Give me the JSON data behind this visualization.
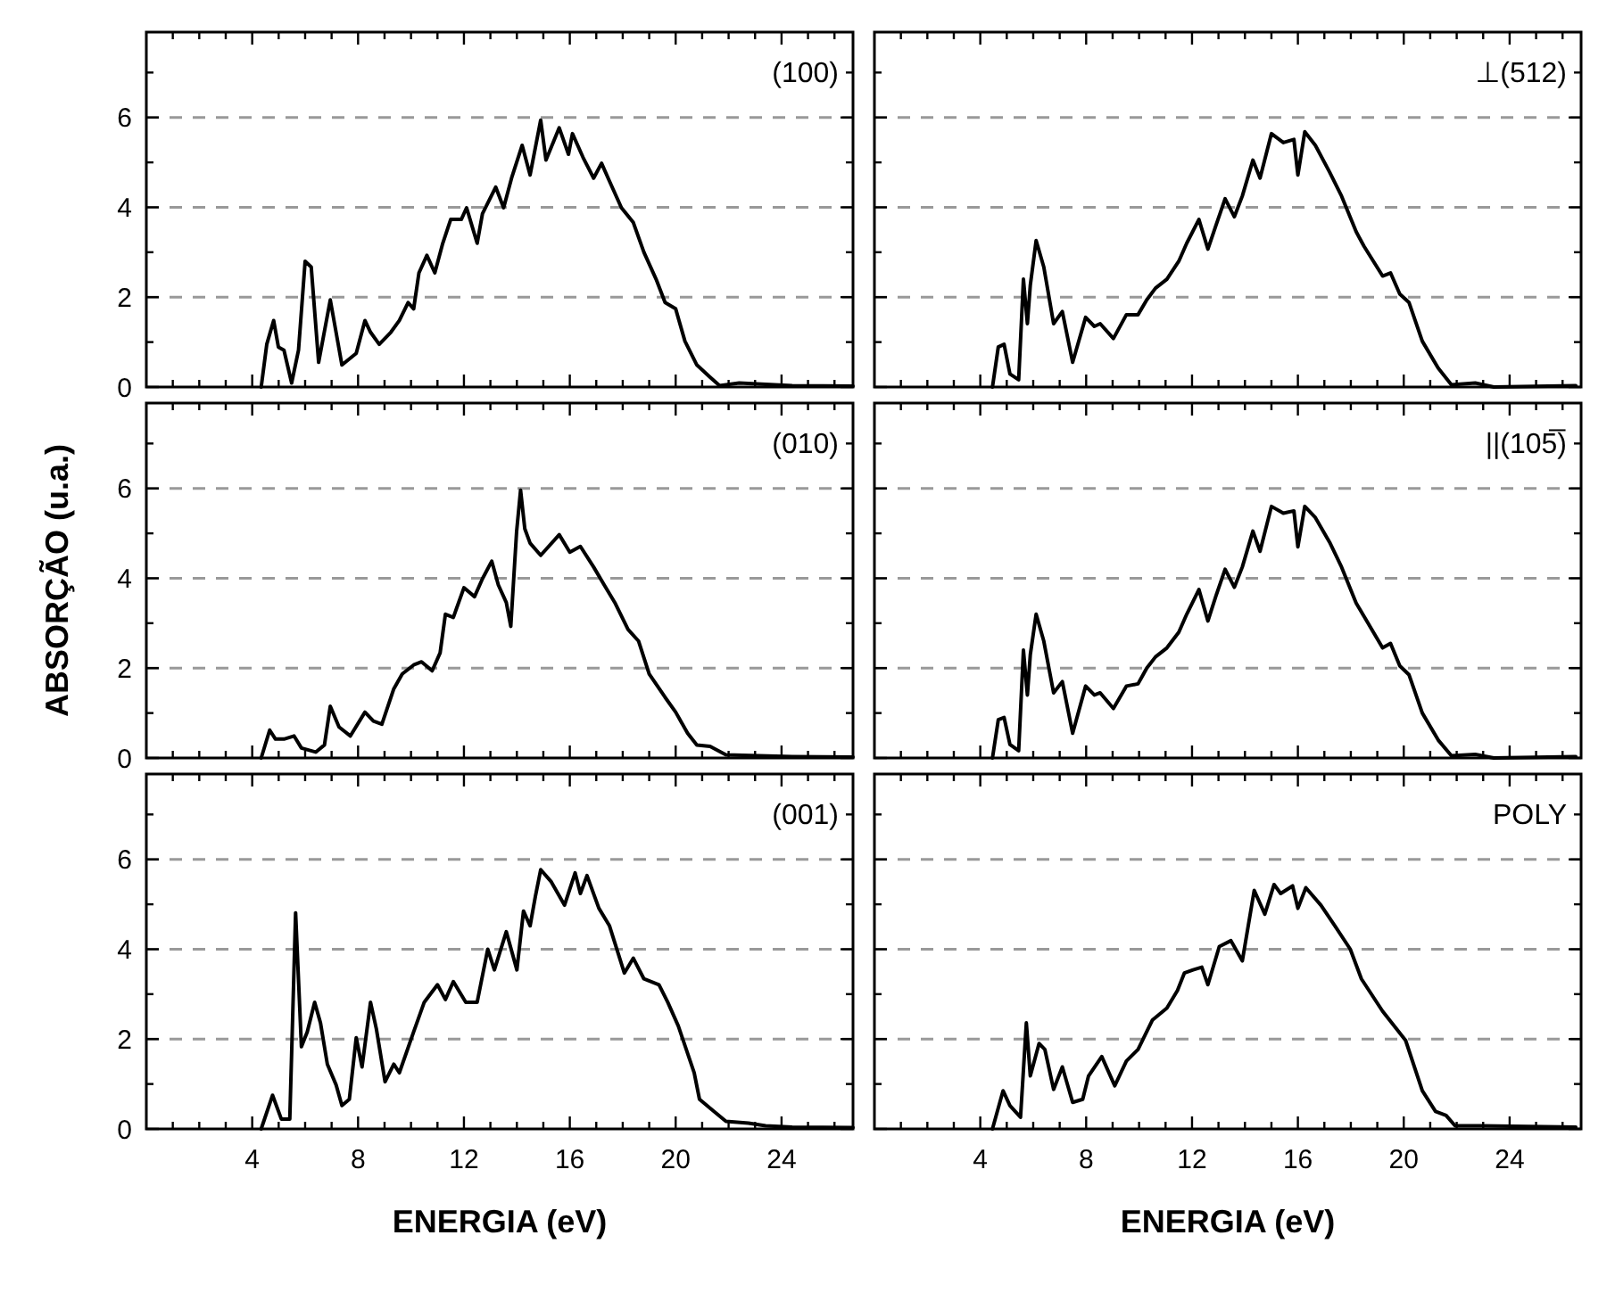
{
  "chart_data": [
    {
      "type": "line",
      "annotations": [
        "(100)"
      ],
      "xlim": [
        0,
        26.7
      ],
      "ylim": [
        0,
        7.9
      ],
      "grid": "y",
      "tick_labels": "y",
      "line_style": "solid",
      "marker": "none",
      "xticks": [
        {
          "value": 1,
          "label": null
        },
        {
          "value": 2,
          "label": null
        },
        {
          "value": 3,
          "label": null
        },
        4,
        {
          "value": 5,
          "label": null
        },
        {
          "value": 6,
          "label": null
        },
        {
          "value": 7,
          "label": null
        },
        8,
        {
          "value": 9,
          "label": null
        },
        {
          "value": 10,
          "label": null
        },
        {
          "value": 11,
          "label": null
        },
        12,
        {
          "value": 13,
          "label": null
        },
        {
          "value": 14,
          "label": null
        },
        {
          "value": 15,
          "label": null
        },
        16,
        {
          "value": 17,
          "label": null
        },
        {
          "value": 18,
          "label": null
        },
        {
          "value": 19,
          "label": null
        },
        20,
        {
          "value": 21,
          "label": null
        },
        {
          "value": 22,
          "label": null
        },
        {
          "value": 23,
          "label": null
        },
        24,
        {
          "value": 25,
          "label": null
        },
        {
          "value": 26,
          "label": null
        }
      ],
      "yticks": [
        0,
        {
          "value": 1,
          "label": null
        },
        2,
        {
          "value": 3,
          "label": null
        },
        4,
        {
          "value": 5,
          "label": null
        },
        6,
        {
          "value": 7,
          "label": null
        }
      ],
      "series": [
        {
          "color": "#000000",
          "x": [
            4.34,
            4.55,
            4.81,
            4.99,
            5.2,
            5.49,
            5.75,
            6.0,
            6.23,
            6.51,
            6.95,
            7.39,
            7.93,
            8.26,
            8.47,
            8.8,
            9.24,
            9.56,
            9.89,
            10.1,
            10.3,
            10.6,
            10.9,
            11.2,
            11.5,
            11.9,
            12.1,
            12.5,
            12.7,
            13.2,
            13.5,
            13.8,
            14.2,
            14.5,
            14.9,
            15.1,
            15.6,
            15.95,
            16.1,
            16.5,
            16.9,
            17.2,
            17.5,
            17.95,
            18.4,
            18.8,
            19.26,
            19.6,
            20.0,
            20.35,
            20.8,
            21.3,
            21.66,
            22.4,
            24.4,
            26.7
          ],
          "values": [
            0,
            0.95,
            1.48,
            0.89,
            0.82,
            0.09,
            0.82,
            2.8,
            2.67,
            0.55,
            1.94,
            0.49,
            0.75,
            1.48,
            1.22,
            0.95,
            1.22,
            1.48,
            1.88,
            1.74,
            2.54,
            2.93,
            2.54,
            3.2,
            3.73,
            3.73,
            3.99,
            3.2,
            3.86,
            4.45,
            3.99,
            4.65,
            5.38,
            4.72,
            5.94,
            5.05,
            5.77,
            5.18,
            5.64,
            5.11,
            4.65,
            4.98,
            4.58,
            3.99,
            3.66,
            3.0,
            2.4,
            1.88,
            1.74,
            1.02,
            0.49,
            0.22,
            0.03,
            0.09,
            0.03,
            0.02
          ]
        }
      ]
    },
    {
      "type": "line",
      "annotations": [
        "⊥(512)"
      ],
      "xlim": [
        0,
        26.7
      ],
      "ylim": [
        0,
        7.9
      ],
      "grid": "y",
      "tick_labels": false,
      "line_style": "solid",
      "marker": "none",
      "xticks": [
        {
          "value": 1,
          "label": null
        },
        {
          "value": 2,
          "label": null
        },
        {
          "value": 3,
          "label": null
        },
        4,
        {
          "value": 5,
          "label": null
        },
        {
          "value": 6,
          "label": null
        },
        {
          "value": 7,
          "label": null
        },
        8,
        {
          "value": 9,
          "label": null
        },
        {
          "value": 10,
          "label": null
        },
        {
          "value": 11,
          "label": null
        },
        12,
        {
          "value": 13,
          "label": null
        },
        {
          "value": 14,
          "label": null
        },
        {
          "value": 15,
          "label": null
        },
        16,
        {
          "value": 17,
          "label": null
        },
        {
          "value": 18,
          "label": null
        },
        {
          "value": 19,
          "label": null
        },
        20,
        {
          "value": 21,
          "label": null
        },
        {
          "value": 22,
          "label": null
        },
        {
          "value": 23,
          "label": null
        },
        24,
        {
          "value": 25,
          "label": null
        },
        {
          "value": 26,
          "label": null
        }
      ],
      "yticks": [
        0,
        {
          "value": 1,
          "label": null
        },
        2,
        {
          "value": 3,
          "label": null
        },
        4,
        {
          "value": 5,
          "label": null
        },
        6,
        {
          "value": 7,
          "label": null
        }
      ],
      "series": [
        {
          "color": "#000000",
          "x": [
            4.46,
            4.68,
            4.9,
            5.12,
            5.45,
            5.63,
            5.78,
            5.89,
            6.11,
            6.4,
            6.77,
            7.1,
            7.49,
            7.98,
            8.31,
            8.53,
            9.03,
            9.52,
            9.96,
            10.29,
            10.62,
            11.05,
            11.5,
            11.8,
            12.26,
            12.6,
            12.9,
            13.25,
            13.6,
            13.9,
            14.3,
            14.57,
            15.0,
            15.45,
            15.85,
            16.0,
            16.26,
            16.66,
            17.2,
            17.65,
            18.2,
            18.5,
            19.2,
            19.5,
            19.85,
            20.2,
            20.7,
            21.3,
            21.8,
            22.7,
            23.4,
            26.5
          ],
          "values": [
            0,
            0.89,
            0.95,
            0.29,
            0.16,
            2.4,
            1.41,
            2.27,
            3.26,
            2.67,
            1.41,
            1.68,
            0.55,
            1.55,
            1.35,
            1.41,
            1.08,
            1.61,
            1.61,
            1.94,
            2.2,
            2.4,
            2.8,
            3.2,
            3.73,
            3.07,
            3.59,
            4.19,
            3.79,
            4.25,
            5.05,
            4.65,
            5.64,
            5.44,
            5.51,
            4.72,
            5.68,
            5.38,
            4.78,
            4.25,
            3.46,
            3.13,
            2.47,
            2.54,
            2.07,
            1.88,
            1.02,
            0.42,
            0.05,
            0.09,
            0,
            0.03
          ]
        }
      ]
    },
    {
      "type": "line",
      "annotations": [
        "(010)"
      ],
      "ylabel": "ABSORÇÃO (u.a.)",
      "xlim": [
        0,
        26.7
      ],
      "ylim": [
        0,
        7.9
      ],
      "grid": "y",
      "tick_labels": "y",
      "line_style": "solid",
      "marker": "none",
      "xticks": [
        {
          "value": 1,
          "label": null
        },
        {
          "value": 2,
          "label": null
        },
        {
          "value": 3,
          "label": null
        },
        4,
        {
          "value": 5,
          "label": null
        },
        {
          "value": 6,
          "label": null
        },
        {
          "value": 7,
          "label": null
        },
        8,
        {
          "value": 9,
          "label": null
        },
        {
          "value": 10,
          "label": null
        },
        {
          "value": 11,
          "label": null
        },
        12,
        {
          "value": 13,
          "label": null
        },
        {
          "value": 14,
          "label": null
        },
        {
          "value": 15,
          "label": null
        },
        16,
        {
          "value": 17,
          "label": null
        },
        {
          "value": 18,
          "label": null
        },
        {
          "value": 19,
          "label": null
        },
        20,
        {
          "value": 21,
          "label": null
        },
        {
          "value": 22,
          "label": null
        },
        {
          "value": 23,
          "label": null
        },
        24,
        {
          "value": 25,
          "label": null
        },
        {
          "value": 26,
          "label": null
        }
      ],
      "yticks": [
        0,
        {
          "value": 1,
          "label": null
        },
        2,
        {
          "value": 3,
          "label": null
        },
        4,
        {
          "value": 5,
          "label": null
        },
        6,
        {
          "value": 7,
          "label": null
        }
      ],
      "series": [
        {
          "color": "#000000",
          "x": [
            4.34,
            4.66,
            4.88,
            5.2,
            5.58,
            5.86,
            6.4,
            6.73,
            6.95,
            7.28,
            7.71,
            8.26,
            8.58,
            8.9,
            9.35,
            9.67,
            10.1,
            10.4,
            10.8,
            11.1,
            11.3,
            11.6,
            12.0,
            12.4,
            12.7,
            13.05,
            13.3,
            13.6,
            13.77,
            13.99,
            14.14,
            14.3,
            14.5,
            14.9,
            15.6,
            16.0,
            16.4,
            16.9,
            17.3,
            17.7,
            18.2,
            18.6,
            19.0,
            19.6,
            20.0,
            20.45,
            20.8,
            21.3,
            21.9,
            24.4,
            26.7
          ],
          "values": [
            0,
            0.62,
            0.42,
            0.42,
            0.49,
            0.22,
            0.13,
            0.29,
            1.15,
            0.69,
            0.49,
            1.02,
            0.82,
            0.75,
            1.54,
            1.87,
            2.07,
            2.14,
            1.94,
            2.34,
            3.2,
            3.13,
            3.79,
            3.59,
            3.99,
            4.38,
            3.85,
            3.46,
            2.93,
            5.04,
            5.96,
            5.1,
            4.78,
            4.51,
            4.97,
            4.58,
            4.71,
            4.25,
            3.85,
            3.46,
            2.86,
            2.6,
            1.87,
            1.35,
            1.02,
            0.55,
            0.29,
            0.26,
            0.07,
            0.03,
            0.02
          ]
        }
      ]
    },
    {
      "type": "line",
      "annotations": [
        "||(105̅)"
      ],
      "xlim": [
        0,
        26.7
      ],
      "ylim": [
        0,
        7.9
      ],
      "grid": "y",
      "tick_labels": false,
      "line_style": "solid",
      "marker": "none",
      "xticks": [
        {
          "value": 1,
          "label": null
        },
        {
          "value": 2,
          "label": null
        },
        {
          "value": 3,
          "label": null
        },
        4,
        {
          "value": 5,
          "label": null
        },
        {
          "value": 6,
          "label": null
        },
        {
          "value": 7,
          "label": null
        },
        8,
        {
          "value": 9,
          "label": null
        },
        {
          "value": 10,
          "label": null
        },
        {
          "value": 11,
          "label": null
        },
        12,
        {
          "value": 13,
          "label": null
        },
        {
          "value": 14,
          "label": null
        },
        {
          "value": 15,
          "label": null
        },
        16,
        {
          "value": 17,
          "label": null
        },
        {
          "value": 18,
          "label": null
        },
        {
          "value": 19,
          "label": null
        },
        20,
        {
          "value": 21,
          "label": null
        },
        {
          "value": 22,
          "label": null
        },
        {
          "value": 23,
          "label": null
        },
        24,
        {
          "value": 25,
          "label": null
        },
        {
          "value": 26,
          "label": null
        }
      ],
      "yticks": [
        0,
        {
          "value": 1,
          "label": null
        },
        2,
        {
          "value": 3,
          "label": null
        },
        4,
        {
          "value": 5,
          "label": null
        },
        6,
        {
          "value": 7,
          "label": null
        }
      ],
      "series": [
        {
          "color": "#000000",
          "x": [
            4.46,
            4.68,
            4.9,
            5.12,
            5.45,
            5.63,
            5.78,
            5.89,
            6.11,
            6.4,
            6.77,
            7.1,
            7.49,
            7.98,
            8.31,
            8.53,
            9.03,
            9.52,
            9.96,
            10.29,
            10.62,
            11.05,
            11.5,
            11.8,
            12.26,
            12.6,
            12.9,
            13.25,
            13.6,
            13.9,
            14.3,
            14.57,
            15.0,
            15.45,
            15.85,
            16.0,
            16.26,
            16.66,
            17.2,
            17.65,
            18.2,
            18.5,
            19.2,
            19.5,
            19.85,
            20.2,
            20.7,
            21.3,
            21.8,
            22.7,
            23.4,
            26.5
          ],
          "values": [
            0,
            0.85,
            0.9,
            0.3,
            0.16,
            2.4,
            1.4,
            2.3,
            3.2,
            2.6,
            1.45,
            1.7,
            0.55,
            1.6,
            1.4,
            1.45,
            1.1,
            1.6,
            1.65,
            2.0,
            2.25,
            2.45,
            2.8,
            3.2,
            3.75,
            3.05,
            3.6,
            4.2,
            3.8,
            4.25,
            5.05,
            4.6,
            5.6,
            5.45,
            5.5,
            4.7,
            5.6,
            5.35,
            4.8,
            4.25,
            3.45,
            3.15,
            2.45,
            2.55,
            2.05,
            1.85,
            1.0,
            0.4,
            0.05,
            0.08,
            0,
            0.03
          ]
        }
      ]
    },
    {
      "type": "line",
      "annotations": [
        "(001)"
      ],
      "xlabel": "ENERGIA (eV)",
      "xlim": [
        0,
        26.7
      ],
      "ylim": [
        0,
        7.9
      ],
      "grid": "y",
      "line_style": "solid",
      "marker": "none",
      "xticks": [
        {
          "value": 1,
          "label": null
        },
        {
          "value": 2,
          "label": null
        },
        {
          "value": 3,
          "label": null
        },
        4,
        {
          "value": 5,
          "label": null
        },
        {
          "value": 6,
          "label": null
        },
        {
          "value": 7,
          "label": null
        },
        8,
        {
          "value": 9,
          "label": null
        },
        {
          "value": 10,
          "label": null
        },
        {
          "value": 11,
          "label": null
        },
        12,
        {
          "value": 13,
          "label": null
        },
        {
          "value": 14,
          "label": null
        },
        {
          "value": 15,
          "label": null
        },
        16,
        {
          "value": 17,
          "label": null
        },
        {
          "value": 18,
          "label": null
        },
        {
          "value": 19,
          "label": null
        },
        20,
        {
          "value": 21,
          "label": null
        },
        {
          "value": 22,
          "label": null
        },
        {
          "value": 23,
          "label": null
        },
        24,
        {
          "value": 25,
          "label": null
        },
        {
          "value": 26,
          "label": null
        }
      ],
      "yticks": [
        0,
        {
          "value": 1,
          "label": null
        },
        2,
        {
          "value": 3,
          "label": null
        },
        4,
        {
          "value": 5,
          "label": null
        },
        6,
        {
          "value": 7,
          "label": null
        }
      ],
      "series": [
        {
          "color": "#000000",
          "x": [
            4.34,
            4.77,
            5.1,
            5.42,
            5.64,
            5.86,
            6.08,
            6.36,
            6.58,
            6.84,
            7.17,
            7.39,
            7.67,
            7.93,
            8.15,
            8.47,
            8.69,
            9.02,
            9.35,
            9.56,
            10.1,
            10.5,
            11.0,
            11.3,
            11.6,
            12.07,
            12.5,
            12.9,
            13.15,
            13.6,
            14.0,
            14.25,
            14.5,
            14.7,
            14.9,
            15.3,
            15.8,
            16.2,
            16.4,
            16.65,
            17.1,
            17.5,
            18.06,
            18.4,
            18.8,
            19.37,
            19.7,
            20.1,
            20.7,
            20.9,
            21.3,
            21.9,
            22.75,
            23.4,
            24.4,
            26.7
          ],
          "values": [
            0,
            0.75,
            0.22,
            0.22,
            4.81,
            1.83,
            2.16,
            2.82,
            2.36,
            1.44,
            0.98,
            0.52,
            0.66,
            2.03,
            1.38,
            2.82,
            2.23,
            1.05,
            1.44,
            1.25,
            2.16,
            2.82,
            3.21,
            2.88,
            3.28,
            2.82,
            2.82,
            4.0,
            3.54,
            4.39,
            3.54,
            4.85,
            4.52,
            5.18,
            5.77,
            5.5,
            4.98,
            5.7,
            5.24,
            5.64,
            4.91,
            4.52,
            3.47,
            3.8,
            3.34,
            3.21,
            2.82,
            2.29,
            1.25,
            0.66,
            0.46,
            0.17,
            0.13,
            0.07,
            0.04,
            0.03
          ]
        }
      ]
    },
    {
      "type": "line",
      "annotations": [
        "POLY"
      ],
      "xlabel": "ENERGIA (eV)",
      "xlim": [
        0,
        26.7
      ],
      "ylim": [
        0,
        7.9
      ],
      "grid": "y",
      "tick_labels": "x",
      "line_style": "solid",
      "marker": "none",
      "xticks": [
        {
          "value": 1,
          "label": null
        },
        {
          "value": 2,
          "label": null
        },
        {
          "value": 3,
          "label": null
        },
        4,
        {
          "value": 5,
          "label": null
        },
        {
          "value": 6,
          "label": null
        },
        {
          "value": 7,
          "label": null
        },
        8,
        {
          "value": 9,
          "label": null
        },
        {
          "value": 10,
          "label": null
        },
        {
          "value": 11,
          "label": null
        },
        12,
        {
          "value": 13,
          "label": null
        },
        {
          "value": 14,
          "label": null
        },
        {
          "value": 15,
          "label": null
        },
        16,
        {
          "value": 17,
          "label": null
        },
        {
          "value": 18,
          "label": null
        },
        {
          "value": 19,
          "label": null
        },
        20,
        {
          "value": 21,
          "label": null
        },
        {
          "value": 22,
          "label": null
        },
        {
          "value": 23,
          "label": null
        },
        24,
        {
          "value": 25,
          "label": null
        },
        {
          "value": 26,
          "label": null
        }
      ],
      "yticks": [
        0,
        {
          "value": 1,
          "label": null
        },
        2,
        {
          "value": 3,
          "label": null
        },
        4,
        {
          "value": 5,
          "label": null
        },
        6,
        {
          "value": 7,
          "label": null
        }
      ],
      "series": [
        {
          "color": "#000000",
          "x": [
            4.46,
            4.86,
            5.12,
            5.52,
            5.74,
            5.89,
            6.22,
            6.44,
            6.77,
            7.1,
            7.49,
            7.87,
            8.09,
            8.59,
            9.08,
            9.52,
            9.96,
            10.5,
            11.05,
            11.45,
            11.71,
            12.04,
            12.37,
            12.6,
            13.03,
            13.47,
            13.9,
            14.35,
            14.75,
            15.1,
            15.35,
            15.8,
            16.0,
            16.3,
            16.87,
            17.4,
            17.98,
            18.4,
            19.2,
            20.07,
            20.7,
            21.2,
            21.6,
            21.94,
            22.9,
            26.5
          ],
          "values": [
            0,
            0.85,
            0.52,
            0.26,
            2.36,
            1.18,
            1.9,
            1.77,
            0.88,
            1.38,
            0.59,
            0.66,
            1.18,
            1.61,
            0.96,
            1.51,
            1.77,
            2.42,
            2.69,
            3.08,
            3.47,
            3.54,
            3.6,
            3.21,
            4.06,
            4.19,
            3.74,
            5.31,
            4.78,
            5.44,
            5.24,
            5.41,
            4.91,
            5.37,
            4.98,
            4.52,
            4.0,
            3.34,
            2.62,
            1.97,
            0.85,
            0.39,
            0.3,
            0.07,
            0.07,
            0.04
          ]
        }
      ]
    }
  ]
}
